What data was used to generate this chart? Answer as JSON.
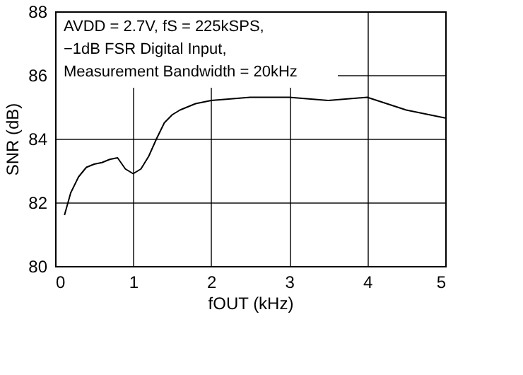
{
  "chart_data": {
    "type": "line",
    "xlabel": "fOUT (kHz)",
    "ylabel": "SNR (dB)",
    "annotations": [
      "AVDD = 2.7V, fS = 225kSPS,",
      "−1dB FSR Digital Input,",
      "Measurement Bandwidth = 20kHz"
    ],
    "x": [
      0.12,
      0.2,
      0.3,
      0.4,
      0.5,
      0.6,
      0.7,
      0.8,
      0.9,
      1.0,
      1.1,
      1.2,
      1.3,
      1.4,
      1.5,
      1.6,
      1.8,
      2.0,
      2.5,
      3.0,
      3.5,
      4.0,
      4.5,
      5.0
    ],
    "series": [
      {
        "color": "#000000",
        "values": [
          81.6,
          82.3,
          82.8,
          83.1,
          83.2,
          83.25,
          83.35,
          83.4,
          83.05,
          82.9,
          83.05,
          83.45,
          84.0,
          84.5,
          84.75,
          84.9,
          85.1,
          85.2,
          85.3,
          85.3,
          85.2,
          85.3,
          84.9,
          84.65
        ]
      }
    ],
    "xlim": [
      0,
      5
    ],
    "xticks": [
      0,
      1,
      2,
      3,
      4,
      5
    ],
    "ylim": [
      80,
      88
    ],
    "yticks": [
      80,
      82,
      84,
      86,
      88
    ],
    "grid": true,
    "marker": "none",
    "line_style": "solid"
  }
}
